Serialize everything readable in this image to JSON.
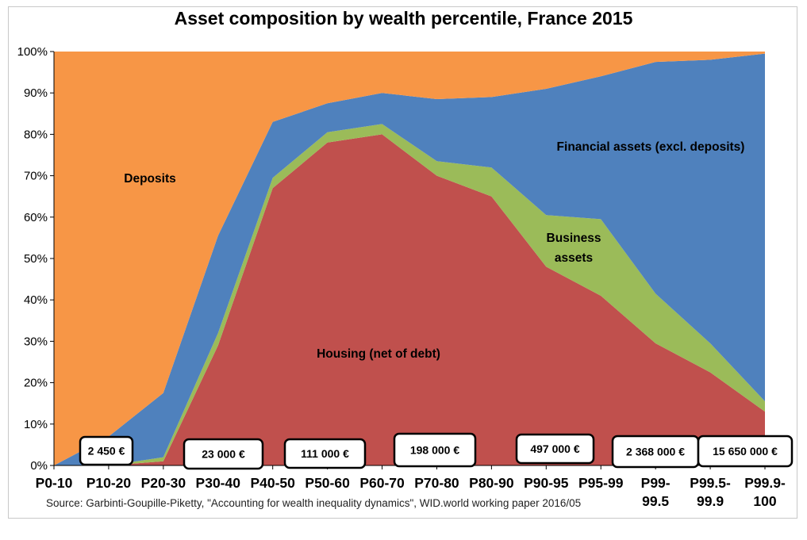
{
  "chart_data": {
    "type": "area",
    "stacked": true,
    "title": "Asset composition by wealth percentile, France 2015",
    "source": "Source: Garbinti-Goupille-Piketty, \"Accounting for wealth inequality dynamics\", WID.world working paper 2016/05",
    "x_tick_labels": [
      [
        "P0-10"
      ],
      [
        "P10-20"
      ],
      [
        "P20-30"
      ],
      [
        "P30-40"
      ],
      [
        "P40-50"
      ],
      [
        "P50-60"
      ],
      [
        "P60-70"
      ],
      [
        "P70-80"
      ],
      [
        "P80-90"
      ],
      [
        "P90-95"
      ],
      [
        "P95-99"
      ],
      [
        "P99-",
        "99.5"
      ],
      [
        "P99.5-",
        "99.9"
      ],
      [
        "P99.9-",
        "100"
      ]
    ],
    "y_ticks": [
      "0%",
      "10%",
      "20%",
      "30%",
      "40%",
      "50%",
      "60%",
      "70%",
      "80%",
      "90%",
      "100%"
    ],
    "ylim": [
      0,
      100
    ],
    "grid": false,
    "series": [
      {
        "name": "Housing (net of debt)",
        "color": "#c0504d",
        "values": [
          0,
          0,
          1,
          29,
          67,
          78,
          80,
          70,
          65,
          48,
          41,
          29.5,
          22.5,
          13
        ]
      },
      {
        "name": "Business assets",
        "color": "#9bbb59",
        "values": [
          0,
          0,
          1,
          3,
          2.5,
          2.5,
          2.5,
          3.5,
          7,
          12.5,
          18.5,
          12,
          7,
          2.5
        ]
      },
      {
        "name": "Financial assets  (excl. deposits)",
        "color": "#4f81bd",
        "values": [
          0,
          7,
          15.5,
          23.5,
          13.5,
          7,
          7.5,
          15,
          17,
          30.5,
          34.5,
          56,
          68.5,
          84
        ]
      },
      {
        "name": "Deposits",
        "color": "#f79646",
        "values": [
          100,
          93,
          82.5,
          44.5,
          17,
          12.5,
          10,
          11.5,
          11,
          9,
          6,
          2.5,
          2,
          0.5
        ]
      }
    ],
    "series_labels": [
      {
        "text": "Deposits"
      },
      {
        "text": "Financial assets  (excl. deposits)"
      },
      {
        "text": "Business"
      },
      {
        "text": "assets"
      },
      {
        "text": "Housing (net of debt)"
      }
    ],
    "annotations": [
      {
        "text": "2 450 €"
      },
      {
        "text": "23 000 €"
      },
      {
        "text": "111 000 €"
      },
      {
        "text": "198 000 €"
      },
      {
        "text": "497 000 €"
      },
      {
        "text": "2 368 000 €"
      },
      {
        "text": "15 650 000 €"
      }
    ]
  }
}
